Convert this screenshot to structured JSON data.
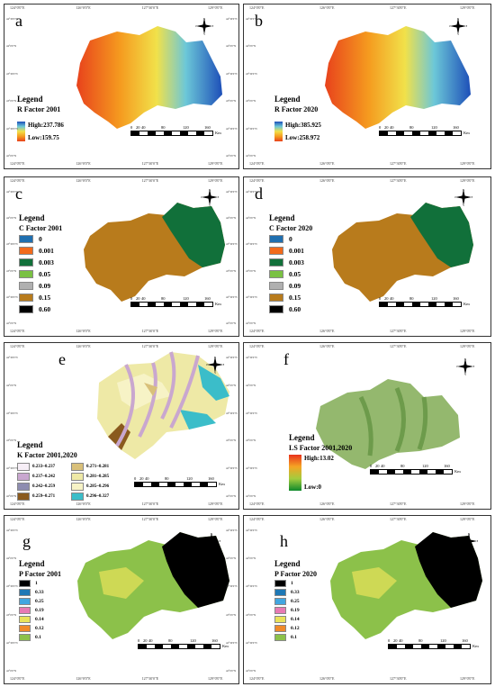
{
  "coords": {
    "top_a": [
      "124°0'0\"E",
      "126°0'0\"E",
      "127°30'0\"E",
      "129°0'0\"E"
    ],
    "lat": [
      "44°30'0\"N",
      "44°0'0\"N",
      "43°30'0\"N",
      "43°0'0\"N",
      "42°30'0\"N",
      "42°0'0\"N"
    ]
  },
  "north": {
    "n": "N",
    "e": "E",
    "s": "S",
    "w": "W"
  },
  "scale": {
    "ticks": [
      "0",
      "20",
      "40",
      "80",
      "120",
      "160"
    ],
    "unit": "Km"
  },
  "panels": [
    {
      "letter": "a",
      "legend_title": "Legend",
      "legend_sub": "R Factor 2001",
      "high": "High:237.786",
      "low": "Low:159.75"
    },
    {
      "letter": "b",
      "legend_title": "Legend",
      "legend_sub": "R Factor 2020",
      "high": "High:385.925",
      "low": "Low:258.972"
    },
    {
      "letter": "c",
      "legend_title": "Legend",
      "legend_sub": "C Factor 2001",
      "classes": [
        {
          "label": "0",
          "color": "#1f6fb0"
        },
        {
          "label": "0.001",
          "color": "#f26a1b"
        },
        {
          "label": "0.003",
          "color": "#11703a"
        },
        {
          "label": "0.05",
          "color": "#7ac143"
        },
        {
          "label": "0.09",
          "color": "#b0b0b0"
        },
        {
          "label": "0.15",
          "color": "#b87b1c"
        },
        {
          "label": "0.60",
          "color": "#000000"
        }
      ]
    },
    {
      "letter": "d",
      "legend_title": "Legend",
      "legend_sub": "C Factor 2020",
      "classes": [
        {
          "label": "0",
          "color": "#1f6fb0"
        },
        {
          "label": "0.001",
          "color": "#f26a1b"
        },
        {
          "label": "0.003",
          "color": "#11703a"
        },
        {
          "label": "0.05",
          "color": "#7ac143"
        },
        {
          "label": "0.09",
          "color": "#b0b0b0"
        },
        {
          "label": "0.15",
          "color": "#b87b1c"
        },
        {
          "label": "0.60",
          "color": "#000000"
        }
      ]
    },
    {
      "letter": "e",
      "legend_title": "Legend",
      "legend_sub": "K Factor 2001,2020",
      "classes": [
        {
          "label": "0.233~0.237",
          "color": "#f6eef6"
        },
        {
          "label": "0.271~0.281",
          "color": "#d9c07a"
        },
        {
          "label": "0.237~0.242",
          "color": "#c9a7cf"
        },
        {
          "label": "0.281~0.285",
          "color": "#eee9a6"
        },
        {
          "label": "0.242~0.259",
          "color": "#8e8db0"
        },
        {
          "label": "0.285~0.296",
          "color": "#f7f3c6"
        },
        {
          "label": "0.259~0.271",
          "color": "#8a5a1e"
        },
        {
          "label": "0.296~0.327",
          "color": "#3bbdc9"
        }
      ]
    },
    {
      "letter": "f",
      "legend_title": "Legend",
      "legend_sub": "LS Factor 2001,2020",
      "high": "High:13.02",
      "low": "Low:0"
    },
    {
      "letter": "g",
      "legend_title": "Legend",
      "legend_sub": "P Factor 2001",
      "classes": [
        {
          "label": "1",
          "color": "#000000"
        },
        {
          "label": "0.33",
          "color": "#1e78b5"
        },
        {
          "label": "0.25",
          "color": "#42a6e0"
        },
        {
          "label": "0.19",
          "color": "#e77ab4"
        },
        {
          "label": "0.14",
          "color": "#e9e25a"
        },
        {
          "label": "0.12",
          "color": "#f08a2a"
        },
        {
          "label": "0.1",
          "color": "#8cc14a"
        }
      ]
    },
    {
      "letter": "h",
      "legend_title": "Legend",
      "legend_sub": "P Factor 2020",
      "classes": [
        {
          "label": "1",
          "color": "#000000"
        },
        {
          "label": "0.33",
          "color": "#1e78b5"
        },
        {
          "label": "0.25",
          "color": "#42a6e0"
        },
        {
          "label": "0.19",
          "color": "#e77ab4"
        },
        {
          "label": "0.14",
          "color": "#e9e25a"
        },
        {
          "label": "0.12",
          "color": "#f08a2a"
        },
        {
          "label": "0.1",
          "color": "#8cc14a"
        }
      ]
    }
  ]
}
